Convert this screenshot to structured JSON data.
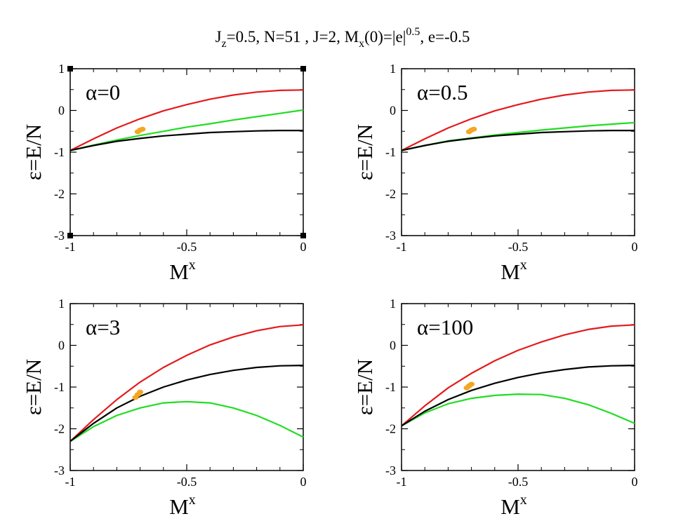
{
  "title": {
    "jz": "J",
    "jz_sub": "z",
    "jz_rest": "=0.5, N=51 , J=2, M",
    "mx_sub": "x",
    "mx_rest": "(0)=|e|",
    "exp": "0.5",
    "tail": ", e=-0.5"
  },
  "colors": {
    "red": "#e41a1c",
    "green": "#22dd22",
    "black": "#000000",
    "orange": "#f5a623"
  },
  "chart_data": [
    {
      "type": "line",
      "panel_label": "α=0",
      "xlabel": "M",
      "xlabel_sup": "x",
      "ylabel": "ε=E/N",
      "xlim": [
        -1,
        0
      ],
      "ylim": [
        -3,
        1
      ],
      "xticks": [
        "-1",
        "-0.5",
        "0"
      ],
      "yticks": [
        "-3",
        "-2",
        "-1",
        "0",
        "1"
      ],
      "series": [
        {
          "color": "red",
          "x": [
            -1,
            -0.9,
            -0.8,
            -0.7,
            -0.6,
            -0.5,
            -0.4,
            -0.3,
            -0.2,
            -0.1,
            0
          ],
          "y": [
            -0.96,
            -0.68,
            -0.42,
            -0.2,
            -0.01,
            0.14,
            0.27,
            0.37,
            0.44,
            0.48,
            0.49
          ]
        },
        {
          "color": "green",
          "x": [
            -1,
            -0.9,
            -0.8,
            -0.7,
            -0.6,
            -0.5,
            -0.4,
            -0.3,
            -0.2,
            -0.1,
            0
          ],
          "y": [
            -0.96,
            -0.83,
            -0.71,
            -0.6,
            -0.5,
            -0.4,
            -0.32,
            -0.23,
            -0.15,
            -0.07,
            0.01
          ]
        },
        {
          "color": "black",
          "x": [
            -1,
            -0.9,
            -0.8,
            -0.7,
            -0.6,
            -0.5,
            -0.4,
            -0.3,
            -0.2,
            -0.1,
            0
          ],
          "y": [
            -0.96,
            -0.84,
            -0.74,
            -0.67,
            -0.61,
            -0.57,
            -0.53,
            -0.51,
            -0.49,
            -0.48,
            -0.48
          ]
        }
      ],
      "cluster": {
        "x": [
          -0.71,
          -0.7,
          -0.69
        ],
        "y": [
          -0.51,
          -0.47,
          -0.45
        ]
      }
    },
    {
      "type": "line",
      "panel_label": "α=0.5",
      "xlabel": "M",
      "xlabel_sup": "x",
      "ylabel": "ε=E/N",
      "xlim": [
        -1,
        0
      ],
      "ylim": [
        -3,
        1
      ],
      "xticks": [
        "-1",
        "-0.5",
        "0"
      ],
      "yticks": [
        "-3",
        "-2",
        "-1",
        "0",
        "1"
      ],
      "series": [
        {
          "color": "red",
          "x": [
            -1,
            -0.9,
            -0.8,
            -0.7,
            -0.6,
            -0.5,
            -0.4,
            -0.3,
            -0.2,
            -0.1,
            0
          ],
          "y": [
            -0.96,
            -0.68,
            -0.42,
            -0.2,
            -0.01,
            0.14,
            0.27,
            0.37,
            0.44,
            0.48,
            0.49
          ]
        },
        {
          "color": "green",
          "x": [
            -1,
            -0.9,
            -0.8,
            -0.7,
            -0.6,
            -0.5,
            -0.4,
            -0.3,
            -0.2,
            -0.1,
            0
          ],
          "y": [
            -0.96,
            -0.84,
            -0.73,
            -0.66,
            -0.59,
            -0.53,
            -0.47,
            -0.42,
            -0.37,
            -0.33,
            -0.29
          ]
        },
        {
          "color": "black",
          "x": [
            -1,
            -0.9,
            -0.8,
            -0.7,
            -0.6,
            -0.5,
            -0.4,
            -0.3,
            -0.2,
            -0.1,
            0
          ],
          "y": [
            -0.96,
            -0.84,
            -0.74,
            -0.67,
            -0.61,
            -0.57,
            -0.53,
            -0.51,
            -0.49,
            -0.48,
            -0.48
          ]
        }
      ],
      "cluster": {
        "x": [
          -0.71,
          -0.7,
          -0.69
        ],
        "y": [
          -0.51,
          -0.47,
          -0.45
        ]
      }
    },
    {
      "type": "line",
      "panel_label": "α=3",
      "xlabel": "M",
      "xlabel_sup": "x",
      "ylabel": "ε=E/N",
      "xlim": [
        -1,
        0
      ],
      "ylim": [
        -3,
        1
      ],
      "xticks": [
        "-1",
        "-0.5",
        "0"
      ],
      "yticks": [
        "-3",
        "-2",
        "-1",
        "0",
        "1"
      ],
      "series": [
        {
          "color": "red",
          "x": [
            -1,
            -0.9,
            -0.8,
            -0.7,
            -0.6,
            -0.5,
            -0.4,
            -0.3,
            -0.2,
            -0.1,
            0
          ],
          "y": [
            -2.3,
            -1.78,
            -1.3,
            -0.88,
            -0.53,
            -0.24,
            0.01,
            0.2,
            0.35,
            0.45,
            0.49
          ]
        },
        {
          "color": "green",
          "x": [
            -1,
            -0.9,
            -0.8,
            -0.7,
            -0.6,
            -0.5,
            -0.4,
            -0.3,
            -0.2,
            -0.1,
            0
          ],
          "y": [
            -2.3,
            -1.95,
            -1.68,
            -1.5,
            -1.38,
            -1.35,
            -1.38,
            -1.5,
            -1.68,
            -1.92,
            -2.2
          ]
        },
        {
          "color": "black",
          "x": [
            -1,
            -0.9,
            -0.8,
            -0.7,
            -0.6,
            -0.5,
            -0.4,
            -0.3,
            -0.2,
            -0.1,
            0
          ],
          "y": [
            -2.3,
            -1.87,
            -1.5,
            -1.22,
            -1.0,
            -0.83,
            -0.7,
            -0.6,
            -0.53,
            -0.49,
            -0.48
          ]
        }
      ],
      "cluster": {
        "x": [
          -0.72,
          -0.71,
          -0.7
        ],
        "y": [
          -1.25,
          -1.18,
          -1.12
        ]
      }
    },
    {
      "type": "line",
      "panel_label": "α=100",
      "xlabel": "M",
      "xlabel_sup": "x",
      "ylabel": "ε=E/N",
      "xlim": [
        -1,
        0
      ],
      "ylim": [
        -3,
        1
      ],
      "xticks": [
        "-1",
        "-0.5",
        "0"
      ],
      "yticks": [
        "-3",
        "-2",
        "-1",
        "0",
        "1"
      ],
      "series": [
        {
          "color": "red",
          "x": [
            -1,
            -0.9,
            -0.8,
            -0.7,
            -0.6,
            -0.5,
            -0.4,
            -0.3,
            -0.2,
            -0.1,
            0
          ],
          "y": [
            -1.93,
            -1.45,
            -1.02,
            -0.67,
            -0.37,
            -0.12,
            0.08,
            0.25,
            0.38,
            0.46,
            0.49
          ]
        },
        {
          "color": "green",
          "x": [
            -1,
            -0.9,
            -0.8,
            -0.7,
            -0.6,
            -0.5,
            -0.4,
            -0.3,
            -0.2,
            -0.1,
            0
          ],
          "y": [
            -1.93,
            -1.62,
            -1.4,
            -1.27,
            -1.2,
            -1.17,
            -1.18,
            -1.27,
            -1.42,
            -1.63,
            -1.87
          ]
        },
        {
          "color": "black",
          "x": [
            -1,
            -0.9,
            -0.8,
            -0.7,
            -0.6,
            -0.5,
            -0.4,
            -0.3,
            -0.2,
            -0.1,
            0
          ],
          "y": [
            -1.93,
            -1.58,
            -1.3,
            -1.08,
            -0.91,
            -0.77,
            -0.66,
            -0.58,
            -0.52,
            -0.49,
            -0.48
          ]
        }
      ],
      "cluster": {
        "x": [
          -0.72,
          -0.71,
          -0.7
        ],
        "y": [
          -1.02,
          -0.97,
          -0.93
        ]
      }
    }
  ]
}
